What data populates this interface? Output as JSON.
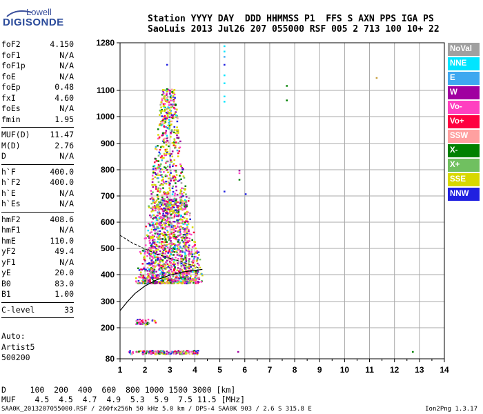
{
  "logo": {
    "line1": "Lowell",
    "line2": "DIGISONDE"
  },
  "header": {
    "line1": "Station YYYY DAY  DDD HHMMSS P1  FFS S AXN PPS IGA PS",
    "line2": "SaoLuis 2013 Jul26 207 055000 RSF 005 2 713 100 10+ 22"
  },
  "params": {
    "group1": [
      {
        "k": "foF2",
        "v": "4.150"
      },
      {
        "k": "foF1",
        "v": "N/A"
      },
      {
        "k": "foF1p",
        "v": "N/A"
      },
      {
        "k": "foE",
        "v": "N/A"
      },
      {
        "k": "foEp",
        "v": "0.48"
      },
      {
        "k": "fxI",
        "v": "4.60"
      },
      {
        "k": "foEs",
        "v": "N/A"
      },
      {
        "k": "fmin",
        "v": "1.95"
      }
    ],
    "group2": [
      {
        "k": "MUF(D)",
        "v": "11.47"
      },
      {
        "k": "M(D)",
        "v": "2.76"
      },
      {
        "k": "D",
        "v": "N/A"
      }
    ],
    "group3": [
      {
        "k": "h`F",
        "v": "400.0"
      },
      {
        "k": "h`F2",
        "v": "400.0"
      },
      {
        "k": "h`E",
        "v": "N/A"
      },
      {
        "k": "h`Es",
        "v": "N/A"
      }
    ],
    "group4": [
      {
        "k": "hmF2",
        "v": "408.6"
      },
      {
        "k": "hmF1",
        "v": "N/A"
      },
      {
        "k": "hmE",
        "v": "110.0"
      },
      {
        "k": "yF2",
        "v": "49.4"
      },
      {
        "k": "yF1",
        "v": "N/A"
      },
      {
        "k": "yE",
        "v": "20.0"
      },
      {
        "k": "B0",
        "v": "83.0"
      },
      {
        "k": "B1",
        "v": "1.00"
      }
    ],
    "group5": [
      {
        "k": "C-level",
        "v": "33"
      }
    ]
  },
  "auto": {
    "l1": "Auto:",
    "l2": "Artist5",
    "l3": "500200"
  },
  "legend": [
    {
      "label": "NoVal",
      "color": "#a0a0a0"
    },
    {
      "label": "NNE",
      "color": "#00e5ff"
    },
    {
      "label": "E",
      "color": "#3ea8f0"
    },
    {
      "label": "W",
      "color": "#a000a0"
    },
    {
      "label": "Vo-",
      "color": "#ff40c0"
    },
    {
      "label": "Vo+",
      "color": "#ff0040"
    },
    {
      "label": "SSW",
      "color": "#ffa0a0"
    },
    {
      "label": "X-",
      "color": "#008000"
    },
    {
      "label": "X+",
      "color": "#70c060"
    },
    {
      "label": "SSE",
      "color": "#d8d800"
    },
    {
      "label": "NNW",
      "color": "#2020e0"
    }
  ],
  "bottom_table": {
    "row1": "D     100  200  400  600  800 1000 1500 3000 [km]",
    "row2": "MUF    4.5  4.5  4.7  4.9  5.3  5.9  7.5 11.5 [MHz]"
  },
  "footer": {
    "text": "SAA0K_2013207055000.RSF / 260fx256h 50 kHz 5.0 km / DPS-4 SAA0K 903 / 2.6 S 315.8 E",
    "version": "Ion2Png 1.3.17"
  },
  "chart_data": {
    "type": "scatter",
    "xlim": [
      1,
      14
    ],
    "ylim": [
      80,
      1280
    ],
    "x_ticks": [
      1,
      2,
      3,
      4,
      5,
      6,
      7,
      8,
      9,
      10,
      11,
      12,
      13,
      14
    ],
    "y_ticks": [
      80,
      200,
      300,
      400,
      500,
      600,
      700,
      800,
      900,
      1000,
      1100,
      1280
    ],
    "x_tick_labels": [
      "1",
      "2",
      "3",
      "4",
      "5",
      "6",
      "7",
      "8",
      "9",
      "10",
      "11",
      "12",
      "13",
      "14"
    ],
    "y_tick_labels": [
      "80",
      "200",
      "300",
      "400",
      "500",
      "600",
      "700",
      "800",
      "900",
      "1000",
      "1100",
      "1280"
    ],
    "grid": true,
    "vertical_gridlines_x": [
      2,
      3,
      4,
      5,
      6,
      7,
      8,
      9,
      10,
      11,
      12,
      13
    ],
    "horizontal_gridlines_y": [
      200,
      300,
      400,
      500,
      600,
      700,
      800,
      900,
      1000,
      1100
    ],
    "profile_curve": [
      [
        1,
        265
      ],
      [
        1.3,
        300
      ],
      [
        1.6,
        330
      ],
      [
        2,
        358
      ],
      [
        2.5,
        382
      ],
      [
        3,
        398
      ],
      [
        3.5,
        410
      ],
      [
        4,
        416
      ],
      [
        4.3,
        420
      ]
    ],
    "ox_trace_curve": [
      [
        1,
        550
      ],
      [
        1.5,
        520
      ],
      [
        2,
        498
      ],
      [
        2.5,
        478
      ],
      [
        3,
        462
      ],
      [
        3.5,
        448
      ],
      [
        4,
        432
      ],
      [
        4.15,
        425
      ]
    ],
    "trace_clusters": [
      {
        "desc": "F-region echoes",
        "x": [
          1.55,
          4.6
        ],
        "y": [
          370,
          700
        ],
        "n": 1400
      },
      {
        "desc": "F-region tall",
        "x": [
          2.1,
          3.7
        ],
        "y": [
          650,
          1110
        ],
        "n": 500
      },
      {
        "desc": "E-layer echoes",
        "x": [
          1.6,
          2.4
        ],
        "y": [
          215,
          235
        ],
        "n": 40
      },
      {
        "desc": "low echoes",
        "x": [
          1.3,
          4.1
        ],
        "y": [
          100,
          115
        ],
        "n": 160
      }
    ],
    "isolated_points": [
      {
        "x": 5.15,
        "y": 1270,
        "color": "#00e5ff"
      },
      {
        "x": 5.15,
        "y": 1250,
        "color": "#00e5ff"
      },
      {
        "x": 5.15,
        "y": 1230,
        "color": "#3ea8f0"
      },
      {
        "x": 5.15,
        "y": 1200,
        "color": "#2020e0"
      },
      {
        "x": 5.15,
        "y": 1160,
        "color": "#00e5ff"
      },
      {
        "x": 5.15,
        "y": 1130,
        "color": "#00e5ff"
      },
      {
        "x": 5.15,
        "y": 1080,
        "color": "#00e5ff"
      },
      {
        "x": 5.15,
        "y": 1060,
        "color": "#00e5ff"
      },
      {
        "x": 5.15,
        "y": 720,
        "color": "#2020e0"
      },
      {
        "x": 7.65,
        "y": 1120,
        "color": "#008000"
      },
      {
        "x": 7.65,
        "y": 1065,
        "color": "#008000"
      },
      {
        "x": 11.25,
        "y": 1150,
        "color": "#c8a040"
      },
      {
        "x": 2.85,
        "y": 1200,
        "color": "#2020e0"
      },
      {
        "x": 5.75,
        "y": 800,
        "color": "#a000a0"
      },
      {
        "x": 5.75,
        "y": 790,
        "color": "#ff40c0"
      },
      {
        "x": 5.75,
        "y": 765,
        "color": "#008000"
      },
      {
        "x": 6.0,
        "y": 710,
        "color": "#2020e0"
      },
      {
        "x": 5.7,
        "y": 110,
        "color": "#a000a0"
      },
      {
        "x": 12.7,
        "y": 110,
        "color": "#008000"
      }
    ]
  }
}
